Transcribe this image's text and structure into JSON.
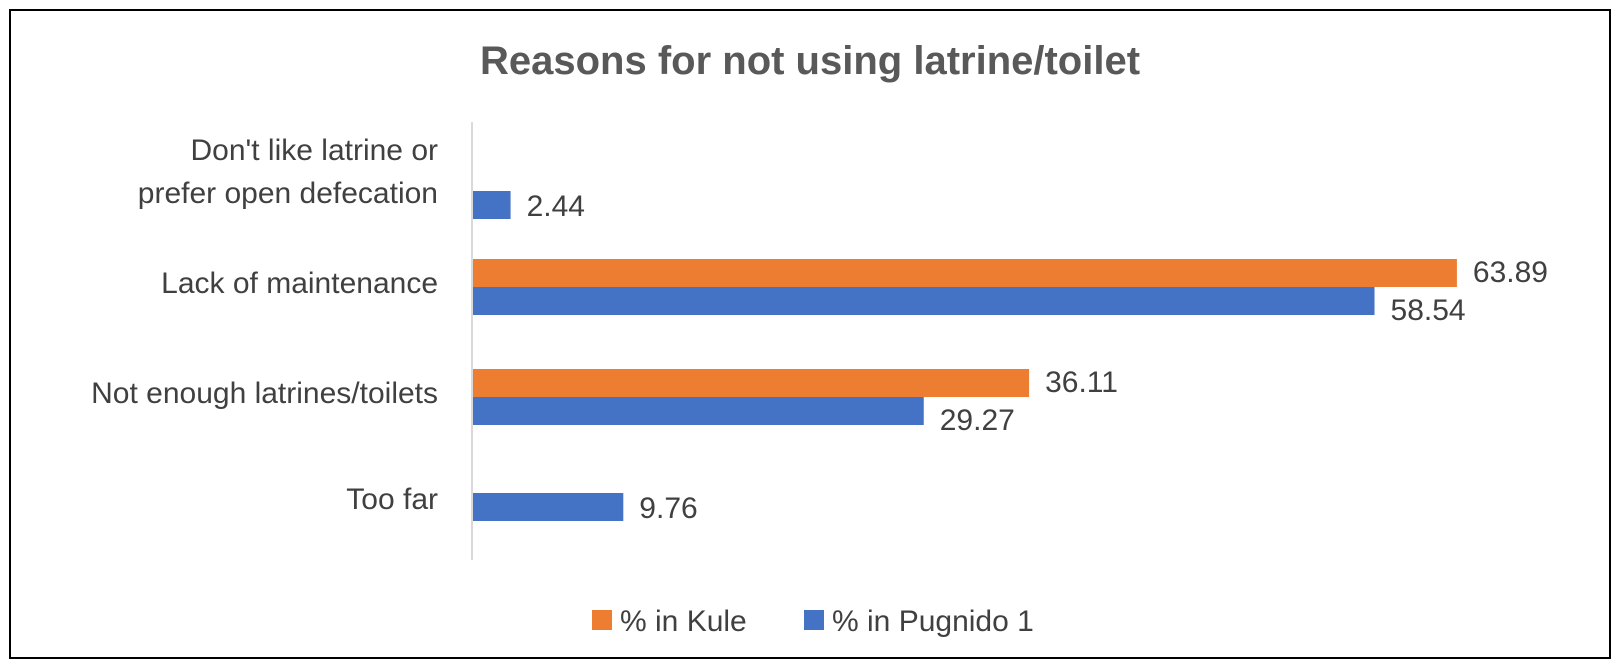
{
  "chart_data": {
    "type": "bar",
    "orientation": "horizontal",
    "title": "Reasons for not using latrine/toilet",
    "xlabel": "",
    "ylabel": "",
    "categories": [
      "Don't like latrine or prefer open defecation",
      "Lack of maintenance",
      "Not enough latrines/toilets",
      "Too far"
    ],
    "category_lines": [
      [
        "Don't like latrine or",
        "prefer open defecation"
      ],
      [
        "Lack of maintenance"
      ],
      [
        "Not enough latrines/toilets"
      ],
      [
        "Too far"
      ]
    ],
    "series": [
      {
        "name": "% in Kule",
        "color": "#ED7D31",
        "values": [
          null,
          63.89,
          36.11,
          null
        ]
      },
      {
        "name": "% in Pugnido 1",
        "color": "#4472C4",
        "values": [
          2.44,
          58.54,
          29.27,
          9.76
        ]
      }
    ],
    "xlim": [
      0,
      64
    ],
    "grid": false,
    "legend_position": "bottom",
    "data_labels": true
  }
}
